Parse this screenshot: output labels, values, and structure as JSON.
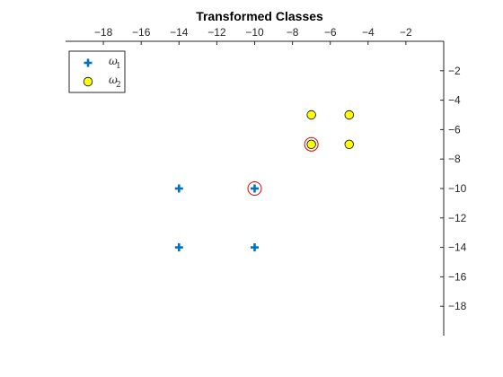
{
  "chart_data": {
    "type": "scatter",
    "title": "Transformed Classes",
    "xlabel": "",
    "ylabel": "",
    "xlim": [
      -20,
      0
    ],
    "ylim": [
      -20,
      0
    ],
    "x_axis_location": "top",
    "y_axis_location": "right",
    "grid": false,
    "legend_position": "top-left",
    "x_ticks": [
      -18,
      -16,
      -14,
      -12,
      -10,
      -8,
      -6,
      -4,
      -2
    ],
    "y_ticks": [
      -2,
      -4,
      -6,
      -8,
      -10,
      -12,
      -14,
      -16,
      -18
    ],
    "series": [
      {
        "name": "ω",
        "subscript": "1",
        "marker": "plus",
        "color": "#0072BD",
        "points": [
          {
            "x": -14,
            "y": -10
          },
          {
            "x": -10,
            "y": -10
          },
          {
            "x": -14,
            "y": -14
          },
          {
            "x": -10,
            "y": -14
          }
        ]
      },
      {
        "name": "ω",
        "subscript": "2",
        "marker": "circle",
        "color": "#FFFF00",
        "edge_color": "#000000",
        "points": [
          {
            "x": -7,
            "y": -5
          },
          {
            "x": -5,
            "y": -5
          },
          {
            "x": -7,
            "y": -7
          },
          {
            "x": -5,
            "y": -7
          }
        ]
      }
    ],
    "highlighted": {
      "color": "#D90000",
      "points": [
        {
          "x": -10,
          "y": -10
        },
        {
          "x": -7,
          "y": -7
        }
      ]
    }
  }
}
